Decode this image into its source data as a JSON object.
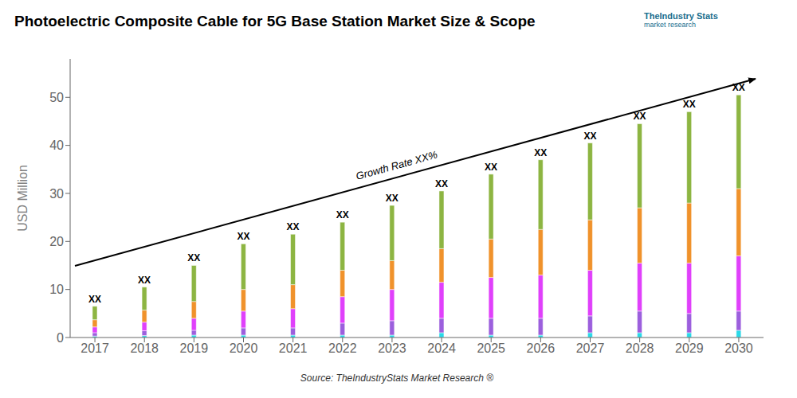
{
  "chart_data": {
    "type": "bar",
    "stacked": true,
    "title": "Photoelectric Composite Cable for 5G Base Station Market Size & Scope",
    "y_label": "USD Million",
    "categories": [
      "2017",
      "2018",
      "2019",
      "2020",
      "2021",
      "2022",
      "2023",
      "2024",
      "2025",
      "2026",
      "2027",
      "2028",
      "2029",
      "2030"
    ],
    "series": [
      {
        "color": "#29d9e8",
        "values": [
          0.3,
          0.4,
          0.5,
          0.5,
          0.5,
          0.5,
          0.5,
          1.0,
          0.5,
          0.5,
          1.0,
          1.0,
          1.0,
          1.5
        ]
      },
      {
        "color": "#9c5fdd",
        "values": [
          0.7,
          1.0,
          1.0,
          1.5,
          1.5,
          2.5,
          3.0,
          3.0,
          3.5,
          3.5,
          3.5,
          4.5,
          4.0,
          4.0
        ]
      },
      {
        "color": "#e040fb",
        "values": [
          1.2,
          1.8,
          2.5,
          3.5,
          4.0,
          5.5,
          6.5,
          7.5,
          8.5,
          9.0,
          9.5,
          10.0,
          10.5,
          11.5
        ]
      },
      {
        "color": "#f0922b",
        "values": [
          1.5,
          2.5,
          3.5,
          4.5,
          5.0,
          5.5,
          6.0,
          7.0,
          8.0,
          9.5,
          10.5,
          11.5,
          12.5,
          14.0
        ]
      },
      {
        "color": "#8db542",
        "values": [
          2.8,
          4.8,
          7.5,
          9.5,
          10.5,
          10.0,
          11.5,
          12.0,
          13.5,
          14.5,
          16.0,
          17.5,
          19.0,
          19.5
        ]
      }
    ],
    "ylim": [
      0,
      58
    ],
    "yticks": [
      0,
      10,
      20,
      30,
      40,
      50
    ],
    "grid": false,
    "annotations": [
      {
        "text": "Growth Rate XX%"
      },
      {
        "text": "TheIndustry Stats"
      },
      {
        "text": "market research"
      },
      {
        "text": "Source: TheIndustryStats Market Research ®"
      },
      {
        "text": "XX",
        "category": "2017"
      },
      {
        "text": "XX",
        "category": "2018"
      },
      {
        "text": "XX",
        "category": "2019"
      },
      {
        "text": "XX",
        "category": "2020"
      },
      {
        "text": "XX",
        "category": "2021"
      },
      {
        "text": "XX",
        "category": "2022"
      },
      {
        "text": "XX",
        "category": "2023"
      },
      {
        "text": "XX",
        "category": "2024"
      },
      {
        "text": "XX",
        "category": "2025"
      },
      {
        "text": "XX",
        "category": "2026"
      },
      {
        "text": "XX",
        "category": "2027"
      },
      {
        "text": "XX",
        "category": "2028"
      },
      {
        "text": "XX",
        "category": "2029"
      },
      {
        "text": "XX",
        "category": "2030"
      }
    ]
  }
}
